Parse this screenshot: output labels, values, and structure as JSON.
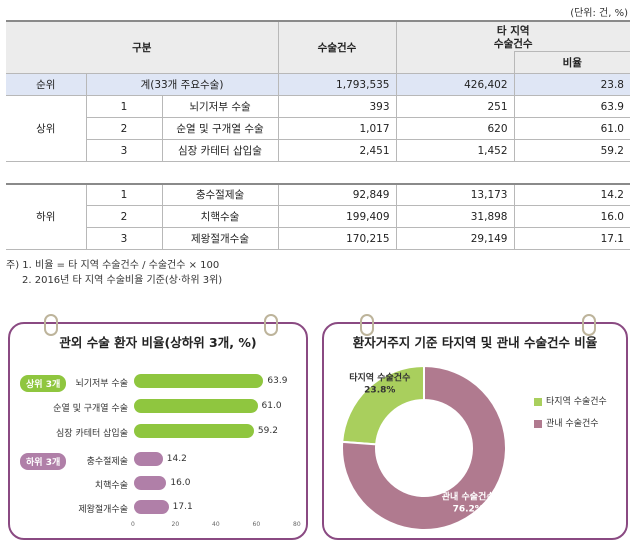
{
  "unit": "(단위: 건, %)",
  "table": {
    "headers": {
      "category": "구분",
      "surgeries": "수술건수",
      "other_region": "타 지역\n수술건수",
      "ratio": "비율"
    },
    "total": {
      "rank": "순위",
      "label": "계(33개 주요수술)",
      "surgeries": "1,793,535",
      "other": "426,402",
      "ratio": "23.8"
    },
    "top": {
      "group": "상위",
      "rows": [
        {
          "no": "1",
          "name": "뇌기저부 수술",
          "surgeries": "393",
          "other": "251",
          "ratio": "63.9"
        },
        {
          "no": "2",
          "name": "순열 및 구개열 수술",
          "surgeries": "1,017",
          "other": "620",
          "ratio": "61.0"
        },
        {
          "no": "3",
          "name": "심장 카테터 삽입술",
          "surgeries": "2,451",
          "other": "1,452",
          "ratio": "59.2"
        }
      ]
    },
    "bottom": {
      "group": "하위",
      "rows": [
        {
          "no": "1",
          "name": "충수절제술",
          "surgeries": "92,849",
          "other": "13,173",
          "ratio": "14.2"
        },
        {
          "no": "2",
          "name": "치핵수술",
          "surgeries": "199,409",
          "other": "31,898",
          "ratio": "16.0"
        },
        {
          "no": "3",
          "name": "제왕절개수술",
          "surgeries": "170,215",
          "other": "29,149",
          "ratio": "17.1"
        }
      ]
    }
  },
  "notes": [
    "주) 1. 비율 = 타 지역 수술건수 / 수술건수 × 100",
    "2. 2016년 타 지역 수술비율 기준(상·하위 3위)"
  ],
  "colors": {
    "top_bar": "#8fc63f",
    "bottom_bar": "#b07fa8",
    "donut_other": "#a9cf5d",
    "donut_local": "#b07a8f",
    "frame": "#8a4a82"
  },
  "chart_data": [
    {
      "type": "bar",
      "title": "관외 수술 환자 비율(상하위 3개, %)",
      "groups": [
        {
          "badge": "상위 3개",
          "categories": [
            "뇌기저부 수술",
            "순열 및 구개열 수술",
            "심장 카테터 삽입술"
          ],
          "values": [
            63.9,
            61.0,
            59.2
          ],
          "labels": [
            "63.9",
            "61.0",
            "59.2"
          ]
        },
        {
          "badge": "하위 3개",
          "categories": [
            "충수절제술",
            "치핵수술",
            "제왕절개수술"
          ],
          "values": [
            14.2,
            16.0,
            17.1
          ],
          "labels": [
            "14.2",
            "16.0",
            "17.1"
          ]
        }
      ],
      "xlim": [
        0,
        80
      ],
      "xticks": [
        "0",
        "20",
        "40",
        "60",
        "80"
      ],
      "orientation": "horizontal"
    },
    {
      "type": "pie",
      "title": "환자거주지 기준 타지역 및 관내 수술건수 비율",
      "slices": [
        {
          "name": "타지역 수술건수",
          "value": 23.8,
          "label": "23.8%"
        },
        {
          "name": "관내 수술건수",
          "value": 76.2,
          "label": "76.2%"
        }
      ],
      "donut": true,
      "legend": "right"
    }
  ]
}
